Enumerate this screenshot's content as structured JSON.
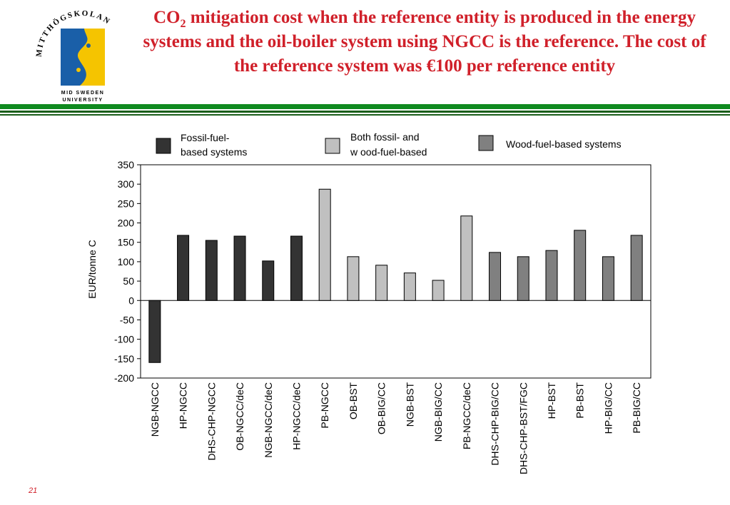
{
  "header": {
    "title_part1": "CO",
    "title_sub": "2",
    "title_part2": " mitigation cost when the reference entity is produced in the energy systems and the oil-boiler system using NGCC is the reference. The cost of  the reference system was €100 per reference entity",
    "logo_text_top": "MITTHÖGSKOLAN",
    "logo_text_bottom_1": "MID SWEDEN",
    "logo_text_bottom_2": "UNIVERSITY"
  },
  "colors": {
    "title": "#d0202a",
    "stripe": "#0f8a1f",
    "logo_blue": "#1a5fa8",
    "logo_yellow": "#f5c400",
    "series_dark": "#333333",
    "series_light": "#c0c0c0",
    "series_mid": "#808080"
  },
  "chart_data": {
    "type": "bar",
    "title": "",
    "xlabel": "",
    "ylabel": "EUR/tonne C",
    "ylim": [
      -200,
      350
    ],
    "yticks": [
      350,
      300,
      250,
      200,
      150,
      100,
      50,
      0,
      -50,
      -100,
      -150,
      -200
    ],
    "grid": false,
    "legend_position": "top",
    "series": [
      {
        "name_line1": "Fossil-fuel-",
        "name_line2": "based systems",
        "color": "#333333"
      },
      {
        "name_line1": "Both fossil- and",
        "name_line2": "w ood-fuel-based",
        "color": "#c0c0c0"
      },
      {
        "name_line1": "Wood-fuel-based systems",
        "name_line2": "",
        "color": "#808080"
      }
    ],
    "categories": [
      "NGB-NGCC",
      "HP-NGCC",
      "DHS-CHP-NGCC",
      "OB-NGCC/deC",
      "NGB-NGCC/deC",
      "HP-NGCC/deC",
      "PB-NGCC",
      "OB-BST",
      "OB-BIG/CC",
      "NGB-BST",
      "NGB-BIG/CC",
      "PB-NGCC/deC",
      "DHS-CHP-BIG/CC",
      "DHS-CHP-BST/FGC",
      "HP-BST",
      "PB-BST",
      "HP-BIG/CC",
      "PB-BIG/CC"
    ],
    "values": [
      -160,
      168,
      155,
      166,
      102,
      166,
      287,
      113,
      91,
      71,
      52,
      218,
      124,
      113,
      129,
      181,
      113,
      168
    ],
    "series_index": [
      0,
      0,
      0,
      0,
      0,
      0,
      1,
      1,
      1,
      1,
      1,
      1,
      2,
      2,
      2,
      2,
      2,
      2
    ]
  },
  "footer": {
    "page_number": "21"
  }
}
